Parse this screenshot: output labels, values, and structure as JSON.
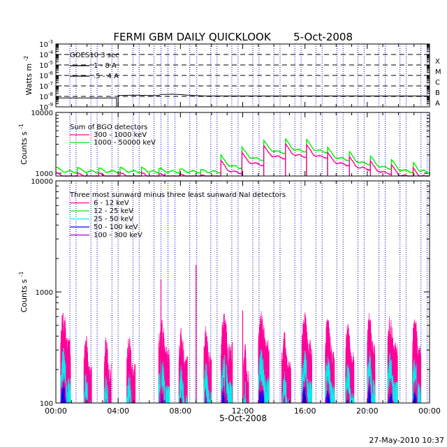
{
  "title": "FERMI GBM DAILY QUICKLOOK",
  "date": "5-Oct-2008",
  "footer_timestamp": "27-May-2010 10:37",
  "colors": {
    "magenta": "#ff0099",
    "green": "#00ee00",
    "cyan": "#00eeee",
    "blue": "#0000ff",
    "purple": "#aa00cc",
    "black": "#000000"
  },
  "chart_data": [
    {
      "type": "line",
      "panel": "goes",
      "ylabel": "Watts m",
      "ylabel_sup": "-2",
      "scale": "log",
      "ylim": [
        1e-09,
        0.001
      ],
      "y_ticks": [
        {
          "base": "10",
          "exp": "-3",
          "value": 0.001
        },
        {
          "base": "10",
          "exp": "-4",
          "value": 0.0001
        },
        {
          "base": "10",
          "exp": "-5",
          "value": 1e-05
        },
        {
          "base": "10",
          "exp": "-6",
          "value": 1e-06
        },
        {
          "base": "10",
          "exp": "-7",
          "value": 1e-07
        },
        {
          "base": "10",
          "exp": "-8",
          "value": 1e-08
        },
        {
          "base": "10",
          "exp": "-9",
          "value": 1e-09
        }
      ],
      "flare_classes": [
        {
          "label": "X",
          "value": 0.0001
        },
        {
          "label": "M",
          "value": 1e-05
        },
        {
          "label": "C",
          "value": 1e-06
        },
        {
          "label": "B",
          "value": 1e-07
        },
        {
          "label": "A",
          "value": 1e-08
        }
      ],
      "legend_title": "GOES10 3 sec",
      "series": [
        {
          "name": "1 - 8 A",
          "color": "#000000",
          "x": [
            0,
            3.9,
            3.9,
            4.0,
            4.0,
            5.0,
            6.0,
            6.6,
            6.7,
            7.5,
            8.0,
            8.5,
            9.0,
            9.5,
            10.0,
            11.0,
            12.0,
            14.0,
            16.0,
            18.0,
            20.0,
            22.0,
            24.0
          ],
          "y": [
            7e-09,
            7e-09,
            1e-09,
            1e-09,
            1.2e-08,
            1.3e-08,
            1.2e-08,
            1.2e-08,
            1.5e-08,
            1.6e-08,
            1.5e-08,
            1.3e-08,
            1.2e-08,
            1.1e-08,
            1.1e-08,
            1.1e-08,
            1.1e-08,
            1.1e-08,
            1.1e-08,
            1.1e-08,
            1.1e-08,
            1.1e-08,
            1.1e-08
          ]
        },
        {
          "name": ".5 - 4 A",
          "color": "#000000",
          "x": [],
          "y": []
        }
      ]
    },
    {
      "type": "line",
      "panel": "bgo",
      "ylabel": "Counts s",
      "ylabel_sup": "-1",
      "scale": "log",
      "ylim": [
        900,
        10000
      ],
      "y_ticks": [
        {
          "label": "10000",
          "value": 10000
        },
        {
          "label": "1000",
          "value": 1000
        }
      ],
      "legend_title": "Sum of BGO detectors",
      "series": [
        {
          "name": "300 - 1000 keV",
          "color": "#ff0099"
        },
        {
          "name": "1000 - 50000 keV",
          "color": "#00ee00"
        }
      ],
      "orbits": [
        {
          "x0": 0.0,
          "x1": 1.38,
          "peak": 1250
        },
        {
          "x0": 1.38,
          "x1": 2.75,
          "peak": 1230
        },
        {
          "x0": 2.75,
          "x1": 4.12,
          "peak": 1230
        },
        {
          "x0": 4.12,
          "x1": 5.5,
          "peak": 1250
        },
        {
          "x0": 5.5,
          "x1": 6.62,
          "peak": 1260
        },
        {
          "x0": 6.62,
          "x1": 7.95,
          "peak": 1200
        },
        {
          "x0": 7.95,
          "x1": 9.3,
          "peak": 1170
        },
        {
          "x0": 9.3,
          "x1": 10.6,
          "peak": 1130
        },
        {
          "x0": 10.6,
          "x1": 11.95,
          "peak": 2000
        },
        {
          "x0": 11.95,
          "x1": 13.35,
          "peak": 2700
        },
        {
          "x0": 13.35,
          "x1": 14.75,
          "peak": 3500
        },
        {
          "x0": 14.75,
          "x1": 16.1,
          "peak": 3700
        },
        {
          "x0": 16.1,
          "x1": 17.45,
          "peak": 3600
        },
        {
          "x0": 17.45,
          "x1": 18.85,
          "peak": 2700
        },
        {
          "x0": 18.85,
          "x1": 20.2,
          "peak": 2300
        },
        {
          "x0": 20.2,
          "x1": 21.55,
          "peak": 1950
        },
        {
          "x0": 21.55,
          "x1": 22.95,
          "peak": 1700
        },
        {
          "x0": 22.95,
          "x1": 24.0,
          "peak": 1500
        }
      ]
    },
    {
      "type": "line",
      "panel": "nai",
      "ylabel": "Counts s",
      "ylabel_sup": "-1",
      "scale": "log",
      "ylim": [
        100,
        10000
      ],
      "y_ticks": [
        {
          "label": "10000",
          "value": 10000
        },
        {
          "label": "1000",
          "value": 1000
        },
        {
          "label": "100",
          "value": 100
        }
      ],
      "legend_title": "Three most sunward minus three least sunward NaI detectors",
      "series": [
        {
          "name": "6 - 12 keV",
          "color": "#ff0099"
        },
        {
          "name": "12 - 25 keV",
          "color": "#00ee00"
        },
        {
          "name": "25 - 50 keV",
          "color": "#00eeee"
        },
        {
          "name": "50 - 100 keV",
          "color": "#0000ff"
        },
        {
          "name": "100 - 300 keV",
          "color": "#aa00cc"
        }
      ],
      "bursts": [
        {
          "x0": 0.3,
          "x1": 0.95,
          "peak": 560
        },
        {
          "x0": 1.8,
          "x1": 2.3,
          "peak": 340
        },
        {
          "x0": 3.1,
          "x1": 3.55,
          "peak": 330
        },
        {
          "x0": 4.55,
          "x1": 5.1,
          "peak": 330
        },
        {
          "x0": 6.6,
          "x1": 7.3,
          "peak": 470
        },
        {
          "x0": 7.9,
          "x1": 8.45,
          "peak": 390
        },
        {
          "x0": 9.5,
          "x1": 10.0,
          "peak": 420
        },
        {
          "x0": 10.6,
          "x1": 11.35,
          "peak": 520
        },
        {
          "x0": 12.05,
          "x1": 12.4,
          "peak": 290
        },
        {
          "x0": 13.0,
          "x1": 13.7,
          "peak": 560
        },
        {
          "x0": 14.5,
          "x1": 15.1,
          "peak": 360
        },
        {
          "x0": 15.8,
          "x1": 16.45,
          "peak": 540
        },
        {
          "x0": 17.3,
          "x1": 17.9,
          "peak": 500
        },
        {
          "x0": 18.6,
          "x1": 19.15,
          "peak": 420
        },
        {
          "x0": 20.0,
          "x1": 20.5,
          "peak": 530
        },
        {
          "x0": 21.3,
          "x1": 21.95,
          "peak": 510
        },
        {
          "x0": 22.9,
          "x1": 23.45,
          "peak": 500
        }
      ],
      "spikes": [
        {
          "x": 6.75,
          "value": 1280
        },
        {
          "x": 9.0,
          "value": 1750
        },
        {
          "x": 12.0,
          "value": 680
        },
        {
          "x": 10.9,
          "value": 330
        },
        {
          "x": 23.2,
          "value": 280
        }
      ]
    }
  ],
  "x_axis": {
    "xlabel": "5-Oct-2008",
    "xlim": [
      0,
      24
    ],
    "tick_labels": [
      "00:00",
      "04:00",
      "08:00",
      "12:00",
      "16:00",
      "20:00",
      "00:00"
    ],
    "tick_values": [
      0,
      4,
      8,
      12,
      16,
      20,
      24
    ],
    "saa_lines": [
      0.9,
      1.3,
      2.25,
      2.65,
      3.6,
      4.0,
      4.95,
      5.35,
      6.3,
      6.75,
      7.2,
      7.65,
      8.6,
      9.05,
      9.95,
      10.35,
      11.3,
      11.7,
      12.65,
      13.05,
      14.0,
      14.4,
      15.35,
      15.75,
      16.7,
      17.1,
      18.05,
      18.45,
      19.4,
      19.8,
      20.75,
      21.15,
      22.1,
      22.5,
      23.45,
      23.85
    ]
  }
}
